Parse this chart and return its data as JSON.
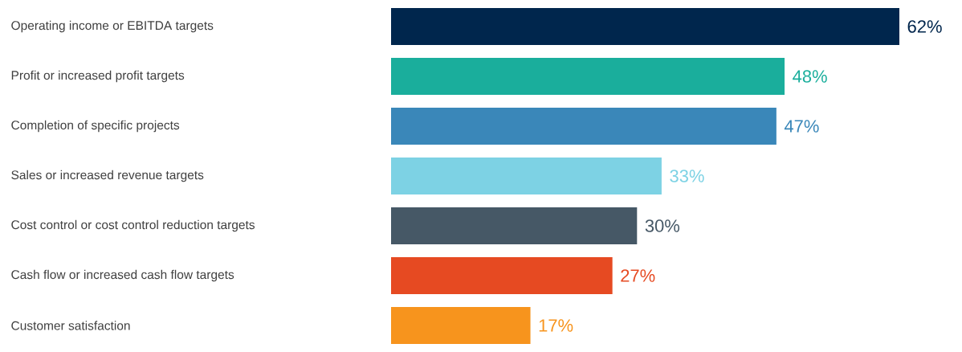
{
  "chart_data": {
    "type": "bar",
    "orientation": "horizontal",
    "categories": [
      "Operating income or EBITDA targets",
      "Profit or increased profit targets",
      "Completion of specific projects",
      "Sales or increased revenue targets",
      "Cost control or cost control reduction targets",
      "Cash flow or increased cash flow targets",
      "Customer satisfaction"
    ],
    "values": [
      62,
      48,
      47,
      33,
      30,
      27,
      17
    ],
    "value_labels": [
      "62%",
      "48%",
      "47%",
      "33%",
      "30%",
      "27%",
      "17%"
    ],
    "colors": [
      "#00264d",
      "#1aae9c",
      "#3a87b9",
      "#7dd2e4",
      "#465866",
      "#e64a22",
      "#f7941d"
    ]
  }
}
